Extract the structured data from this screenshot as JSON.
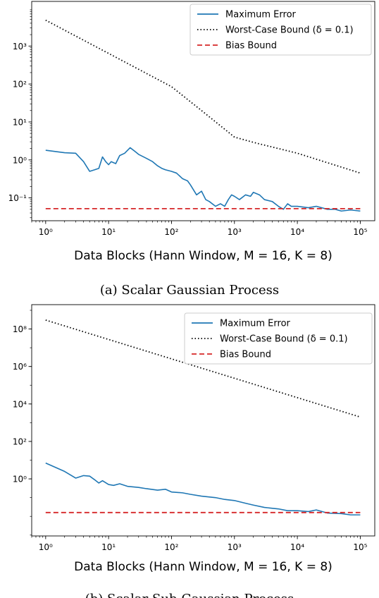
{
  "chart_data": [
    {
      "type": "line",
      "caption": "(a) Scalar Gaussian Process",
      "xlabel": "Data Blocks (Hann Window, M = 16, K = 8)",
      "ylabel": "",
      "xscale": "log",
      "yscale": "log",
      "xlim": [
        0.6,
        170000
      ],
      "ylim": [
        0.025,
        15000
      ],
      "xticks": [
        {
          "value": 1,
          "label": "10⁰"
        },
        {
          "value": 10,
          "label": "10¹"
        },
        {
          "value": 100,
          "label": "10²"
        },
        {
          "value": 1000,
          "label": "10³"
        },
        {
          "value": 10000,
          "label": "10⁴"
        },
        {
          "value": 100000,
          "label": "10⁵"
        }
      ],
      "yticks": [
        {
          "value": 0.1,
          "label": "10⁻¹"
        },
        {
          "value": 1,
          "label": "10⁰"
        },
        {
          "value": 10,
          "label": "10¹"
        },
        {
          "value": 100,
          "label": "10²"
        },
        {
          "value": 1000,
          "label": "10³"
        }
      ],
      "legend_position": "top-right",
      "series": [
        {
          "name": "Maximum Error",
          "color": "#1f77b4",
          "style": "solid",
          "points": [
            [
              1,
              1.8
            ],
            [
              2,
              1.55
            ],
            [
              3,
              1.5
            ],
            [
              4,
              0.9
            ],
            [
              5,
              0.5
            ],
            [
              6,
              0.55
            ],
            [
              7,
              0.6
            ],
            [
              8,
              1.2
            ],
            [
              9,
              0.9
            ],
            [
              10,
              0.75
            ],
            [
              11,
              0.9
            ],
            [
              13,
              0.8
            ],
            [
              15,
              1.3
            ],
            [
              18,
              1.5
            ],
            [
              22,
              2.1
            ],
            [
              26,
              1.7
            ],
            [
              30,
              1.4
            ],
            [
              40,
              1.1
            ],
            [
              50,
              0.9
            ],
            [
              60,
              0.7
            ],
            [
              70,
              0.6
            ],
            [
              80,
              0.55
            ],
            [
              100,
              0.5
            ],
            [
              120,
              0.45
            ],
            [
              150,
              0.32
            ],
            [
              180,
              0.28
            ],
            [
              200,
              0.22
            ],
            [
              250,
              0.12
            ],
            [
              300,
              0.15
            ],
            [
              350,
              0.09
            ],
            [
              400,
              0.08
            ],
            [
              500,
              0.06
            ],
            [
              600,
              0.07
            ],
            [
              700,
              0.06
            ],
            [
              800,
              0.09
            ],
            [
              900,
              0.12
            ],
            [
              1000,
              0.11
            ],
            [
              1200,
              0.09
            ],
            [
              1500,
              0.12
            ],
            [
              1800,
              0.11
            ],
            [
              2000,
              0.14
            ],
            [
              2500,
              0.12
            ],
            [
              3000,
              0.09
            ],
            [
              4000,
              0.08
            ],
            [
              5000,
              0.06
            ],
            [
              6000,
              0.05
            ],
            [
              7000,
              0.07
            ],
            [
              8000,
              0.06
            ],
            [
              10000,
              0.06
            ],
            [
              15000,
              0.055
            ],
            [
              20000,
              0.06
            ],
            [
              30000,
              0.05
            ],
            [
              40000,
              0.05
            ],
            [
              50000,
              0.045
            ],
            [
              70000,
              0.048
            ],
            [
              100000,
              0.045
            ]
          ]
        },
        {
          "name": "Worst-Case Bound (δ = 0.1)",
          "color": "#000000",
          "style": "dotted",
          "points": [
            [
              1,
              4800
            ],
            [
              10,
              640
            ],
            [
              100,
              85
            ],
            [
              300,
              20
            ],
            [
              1000,
              4
            ],
            [
              2000,
              2.9
            ],
            [
              10000,
              1.5
            ],
            [
              100000,
              0.45
            ]
          ]
        },
        {
          "name": "Bias Bound",
          "color": "#d62728",
          "style": "dashed",
          "points": [
            [
              1,
              0.052
            ],
            [
              100000,
              0.052
            ]
          ]
        }
      ]
    },
    {
      "type": "line",
      "caption": "(b) Scalar Sub-Gaussian Process",
      "xlabel": "Data Blocks (Hann Window, M = 16, K = 8)",
      "ylabel": "",
      "xscale": "log",
      "yscale": "log",
      "xlim": [
        0.6,
        170000
      ],
      "ylim": [
        0.0009,
        2000000000
      ],
      "xticks": [
        {
          "value": 1,
          "label": "10⁰"
        },
        {
          "value": 10,
          "label": "10¹"
        },
        {
          "value": 100,
          "label": "10²"
        },
        {
          "value": 1000,
          "label": "10³"
        },
        {
          "value": 10000,
          "label": "10⁴"
        },
        {
          "value": 100000,
          "label": "10⁵"
        }
      ],
      "yticks": [
        {
          "value": 1,
          "label": "10⁰"
        },
        {
          "value": 100,
          "label": "10²"
        },
        {
          "value": 10000,
          "label": "10⁴"
        },
        {
          "value": 1000000,
          "label": "10⁶"
        },
        {
          "value": 100000000,
          "label": "10⁸"
        }
      ],
      "legend_position": "top-right",
      "series": [
        {
          "name": "Maximum Error",
          "color": "#1f77b4",
          "style": "solid",
          "points": [
            [
              1,
              7
            ],
            [
              2,
              2.5
            ],
            [
              3,
              1.1
            ],
            [
              4,
              1.5
            ],
            [
              5,
              1.4
            ],
            [
              6,
              0.9
            ],
            [
              7,
              0.6
            ],
            [
              8,
              0.8
            ],
            [
              10,
              0.5
            ],
            [
              12,
              0.45
            ],
            [
              15,
              0.55
            ],
            [
              20,
              0.4
            ],
            [
              30,
              0.35
            ],
            [
              40,
              0.3
            ],
            [
              60,
              0.25
            ],
            [
              80,
              0.28
            ],
            [
              100,
              0.2
            ],
            [
              150,
              0.18
            ],
            [
              200,
              0.15
            ],
            [
              300,
              0.12
            ],
            [
              500,
              0.1
            ],
            [
              700,
              0.08
            ],
            [
              1000,
              0.07
            ],
            [
              1500,
              0.05
            ],
            [
              2000,
              0.04
            ],
            [
              3000,
              0.03
            ],
            [
              5000,
              0.025
            ],
            [
              7000,
              0.02
            ],
            [
              10000,
              0.02
            ],
            [
              15000,
              0.018
            ],
            [
              20000,
              0.022
            ],
            [
              30000,
              0.015
            ],
            [
              50000,
              0.014
            ],
            [
              70000,
              0.012
            ],
            [
              100000,
              0.012
            ]
          ]
        },
        {
          "name": "Worst-Case Bound (δ = 0.1)",
          "color": "#000000",
          "style": "dotted",
          "points": [
            [
              1,
              300000000
            ],
            [
              100000,
              2000
            ]
          ]
        },
        {
          "name": "Bias Bound",
          "color": "#d62728",
          "style": "dashed",
          "points": [
            [
              1,
              0.016
            ],
            [
              100000,
              0.016
            ]
          ]
        }
      ]
    }
  ]
}
